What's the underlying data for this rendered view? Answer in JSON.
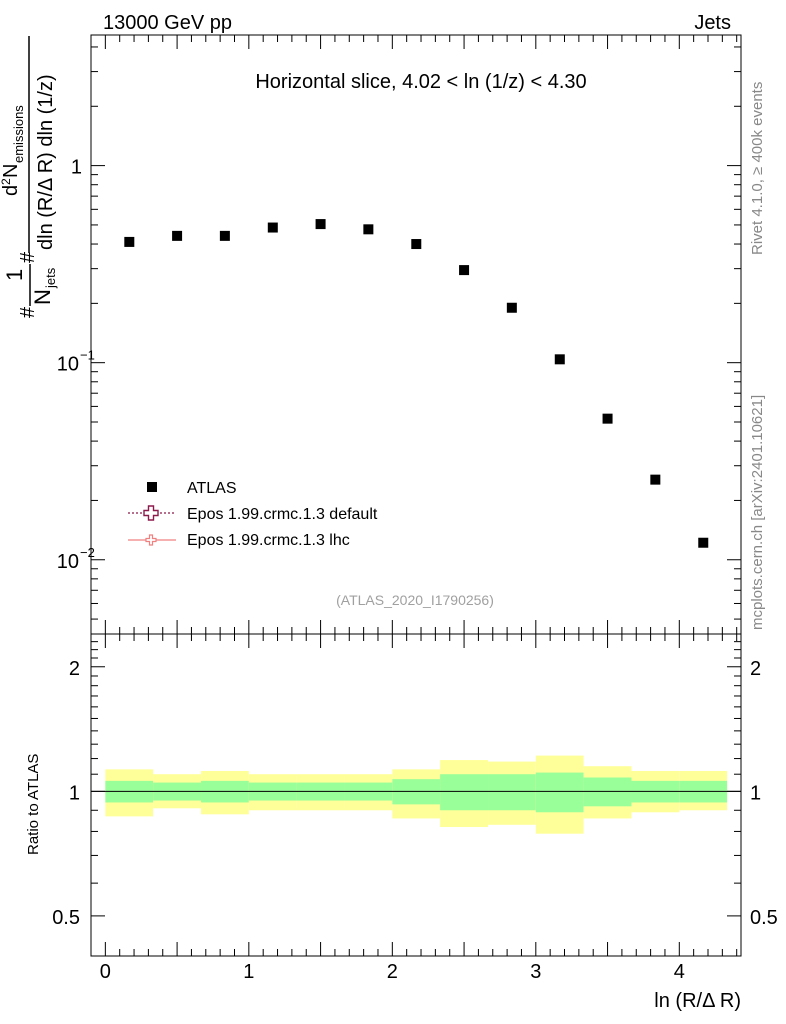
{
  "header": {
    "left": "13000 GeV pp",
    "right": "Jets"
  },
  "side_labels": {
    "rivet": "Rivet 4.1.0, ≥ 400k events",
    "mcplots": "mcplots.cern.ch [arXiv:2401.10621]"
  },
  "chart_data": [
    {
      "type": "scatter",
      "title": "Horizontal slice, 4.02 < ln (1/z) < 4.30",
      "xlabel": "ln (R/Δ R)",
      "ylabel_parts": {
        "frac_num": "1",
        "frac_den_N": "N",
        "frac_den_sub": "jets",
        "d_num": "d",
        "d_num_sup": "2",
        "d_num_N": "N",
        "d_num_sub": "emissions",
        "d_den": "dln (R/Δ R) dln (1/z)",
        "hash": "#"
      },
      "yscale": "log",
      "ylim": [
        0.0042,
        4.6
      ],
      "xlim": [
        -0.1,
        4.43
      ],
      "y_ticks": [
        {
          "value": 1,
          "base": "1",
          "exp": ""
        },
        {
          "value": 0.1,
          "base": "10",
          "exp": "−1"
        },
        {
          "value": 0.01,
          "base": "10",
          "exp": "−2"
        }
      ],
      "watermark": "(ATLAS_2020_I1790256)",
      "legend": [
        {
          "label": "ATLAS",
          "marker": "square",
          "color": "#000000"
        },
        {
          "label": "Epos 1.99.crmc.1.3 default",
          "marker": "open-cross",
          "color": "#8b1a4a",
          "linestyle": "dotted"
        },
        {
          "label": "Epos 1.99.crmc.1.3 lhc",
          "marker": "open-cross",
          "color": "#f08080",
          "linestyle": "solid"
        }
      ],
      "series": [
        {
          "name": "ATLAS",
          "x": [
            0.167,
            0.5,
            0.833,
            1.167,
            1.5,
            1.833,
            2.167,
            2.5,
            2.833,
            3.167,
            3.5,
            3.833,
            4.167
          ],
          "y": [
            0.41,
            0.44,
            0.44,
            0.485,
            0.505,
            0.475,
            0.4,
            0.295,
            0.19,
            0.104,
            0.052,
            0.0255,
            0.0122
          ]
        }
      ]
    },
    {
      "type": "area",
      "ylabel": "Ratio to ATLAS",
      "xlabel": "ln (R/Δ R)",
      "ylim": [
        0.4,
        2.4
      ],
      "xlim": [
        -0.1,
        4.43
      ],
      "x_ticks": [
        "0",
        "1",
        "2",
        "3",
        "4"
      ],
      "y_ticks": [
        "0.5",
        "1",
        "2"
      ],
      "y_tick_values": [
        0.5,
        1,
        2
      ],
      "x_tick_values": [
        0,
        1,
        2,
        3,
        4
      ],
      "bin_edges": [
        0,
        0.333,
        0.667,
        1.0,
        1.333,
        1.667,
        2.0,
        2.333,
        2.667,
        3.0,
        3.333,
        3.667,
        4.0,
        4.333
      ],
      "band_inner_low": [
        0.94,
        0.95,
        0.94,
        0.95,
        0.95,
        0.95,
        0.93,
        0.9,
        0.9,
        0.89,
        0.92,
        0.94,
        0.94
      ],
      "band_inner_high": [
        1.06,
        1.05,
        1.06,
        1.05,
        1.05,
        1.05,
        1.07,
        1.1,
        1.1,
        1.11,
        1.08,
        1.06,
        1.06
      ],
      "band_outer_low": [
        0.87,
        0.91,
        0.88,
        0.9,
        0.9,
        0.9,
        0.86,
        0.82,
        0.83,
        0.79,
        0.86,
        0.89,
        0.9
      ],
      "band_outer_high": [
        1.13,
        1.1,
        1.12,
        1.1,
        1.1,
        1.1,
        1.13,
        1.19,
        1.18,
        1.22,
        1.15,
        1.12,
        1.12
      ],
      "colors": {
        "inner": "#99ff99",
        "outer": "#ffff99",
        "line": "#000000"
      }
    }
  ]
}
